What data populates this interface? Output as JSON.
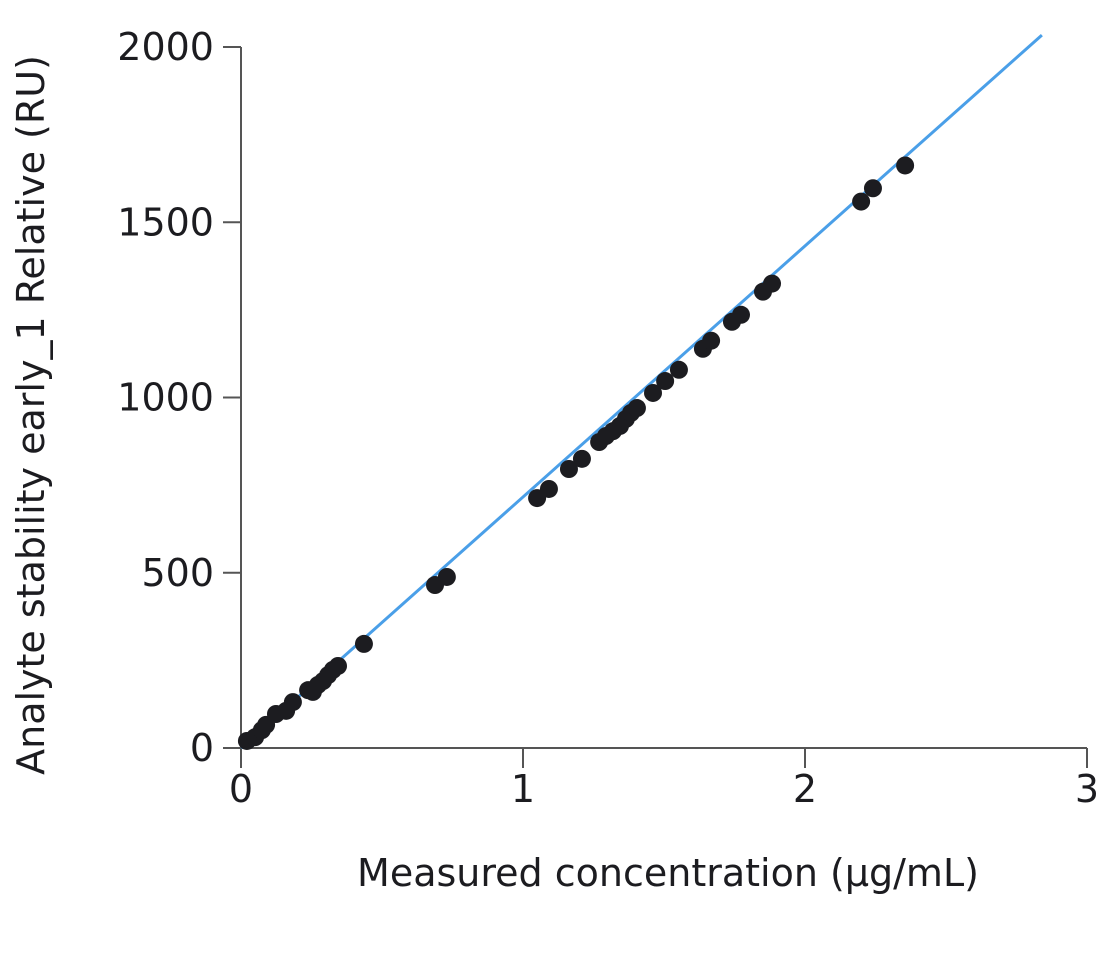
{
  "chart_data": {
    "type": "scatter",
    "xlabel": "Measured concentration (µg/mL)",
    "ylabel": "Analyte stability early_1 Relative (RU)",
    "xlim": [
      0,
      3
    ],
    "ylim": [
      0,
      2000
    ],
    "xticks": [
      0,
      1,
      2,
      3
    ],
    "yticks": [
      0,
      500,
      1000,
      1500,
      2000
    ],
    "grid": false,
    "colors": {
      "points": "#1c1c20",
      "fit_line": "#4a9fe8",
      "axes": "#555555"
    },
    "fit_line": {
      "x": [
        0,
        2.84
      ],
      "y": [
        0,
        2034
      ]
    },
    "points": {
      "x": [
        0.021,
        0.05,
        0.074,
        0.089,
        0.124,
        0.16,
        0.184,
        0.238,
        0.255,
        0.273,
        0.291,
        0.309,
        0.326,
        0.344,
        0.436,
        0.688,
        0.73,
        1.05,
        1.092,
        1.163,
        1.209,
        1.27,
        1.294,
        1.319,
        1.344,
        1.365,
        1.383,
        1.404,
        1.461,
        1.504,
        1.553,
        1.638,
        1.667,
        1.741,
        1.773,
        1.851,
        1.883,
        2.199,
        2.241,
        2.355
      ],
      "y": [
        20,
        31,
        51,
        66,
        97,
        106,
        131,
        165,
        160,
        180,
        191,
        208,
        223,
        234,
        297,
        465,
        488,
        713,
        739,
        796,
        825,
        873,
        890,
        904,
        919,
        939,
        956,
        970,
        1013,
        1047,
        1079,
        1139,
        1162,
        1216,
        1236,
        1302,
        1325,
        1559,
        1597,
        1662
      ]
    }
  }
}
